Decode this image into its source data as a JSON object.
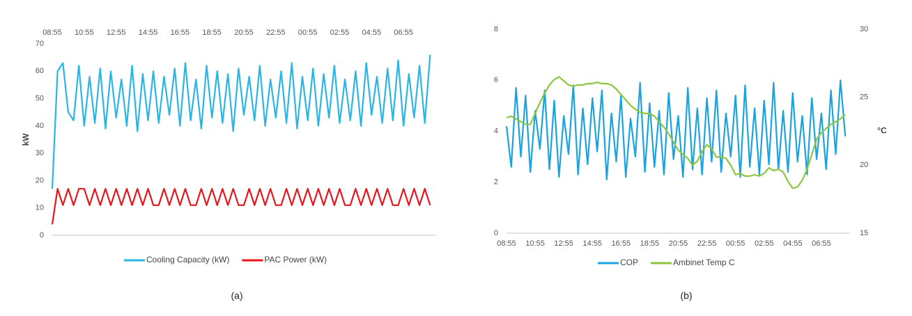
{
  "chart_data": [
    {
      "type": "line",
      "caption": "(a)",
      "y_label": "kW",
      "x_label_position": "top",
      "grid": false,
      "categories": [
        "08:55",
        null,
        null,
        null,
        null,
        null,
        "10:55",
        null,
        null,
        null,
        null,
        null,
        "12:55",
        null,
        null,
        null,
        null,
        null,
        "14:55",
        null,
        null,
        null,
        null,
        null,
        "16:55",
        null,
        null,
        null,
        null,
        null,
        "18:55",
        null,
        null,
        null,
        null,
        null,
        "20:55",
        null,
        null,
        null,
        null,
        null,
        "22:55",
        null,
        null,
        null,
        null,
        null,
        "00:55",
        null,
        null,
        null,
        null,
        null,
        "02:55",
        null,
        null,
        null,
        null,
        null,
        "04:55",
        null,
        null,
        null,
        null,
        null,
        "06:55",
        null,
        null,
        null,
        null,
        null
      ],
      "ylim": [
        0,
        70
      ],
      "yticks": [
        0,
        10,
        20,
        30,
        40,
        50,
        60,
        70
      ],
      "series": [
        {
          "name": "Cooling Capacity (kW)",
          "color": "#29b5e6",
          "values": [
            17,
            60,
            63,
            45,
            42,
            62,
            40,
            58,
            41,
            61,
            39,
            60,
            43,
            57,
            40,
            62,
            38,
            59,
            42,
            60,
            41,
            58,
            44,
            61,
            40,
            63,
            42,
            57,
            39,
            62,
            43,
            60,
            41,
            59,
            38,
            61,
            44,
            58,
            42,
            62,
            40,
            57,
            43,
            60,
            41,
            63,
            39,
            58,
            42,
            61,
            40,
            59,
            43,
            62,
            41,
            57,
            42,
            60,
            40,
            63,
            44,
            58,
            41,
            61,
            42,
            64,
            40,
            59,
            43,
            62,
            41,
            66
          ]
        },
        {
          "name": "PAC Power (kW)",
          "color": "#e8141b",
          "values": [
            4,
            17,
            11,
            17,
            11,
            17,
            17,
            11,
            17,
            11,
            17,
            11,
            17,
            11,
            17,
            11,
            17,
            11,
            17,
            11,
            11,
            17,
            11,
            17,
            11,
            17,
            11,
            11,
            17,
            11,
            17,
            11,
            17,
            11,
            17,
            11,
            11,
            17,
            11,
            17,
            11,
            17,
            11,
            11,
            17,
            11,
            17,
            11,
            17,
            11,
            17,
            11,
            17,
            11,
            17,
            11,
            11,
            17,
            11,
            17,
            11,
            17,
            11,
            17,
            11,
            11,
            17,
            11,
            17,
            11,
            17,
            11
          ]
        }
      ]
    },
    {
      "type": "line",
      "caption": "(b)",
      "y2_label": "°C",
      "x_label_position": "bottom",
      "grid": false,
      "categories": [
        "08:55",
        null,
        null,
        null,
        null,
        null,
        "10:55",
        null,
        null,
        null,
        null,
        null,
        "12:55",
        null,
        null,
        null,
        null,
        null,
        "14:55",
        null,
        null,
        null,
        null,
        null,
        "16:55",
        null,
        null,
        null,
        null,
        null,
        "18:55",
        null,
        null,
        null,
        null,
        null,
        "20:55",
        null,
        null,
        null,
        null,
        null,
        "22:55",
        null,
        null,
        null,
        null,
        null,
        "00:55",
        null,
        null,
        null,
        null,
        null,
        "02:55",
        null,
        null,
        null,
        null,
        null,
        "04:55",
        null,
        null,
        null,
        null,
        null,
        "06:55",
        null,
        null,
        null,
        null,
        null
      ],
      "ylim": [
        0,
        8
      ],
      "yticks": [
        0,
        2,
        4,
        6,
        8
      ],
      "y2lim": [
        15,
        30
      ],
      "y2ticks": [
        15,
        20,
        25,
        30
      ],
      "series": [
        {
          "name": "COP",
          "color": "#1aa3df",
          "values": [
            4.2,
            2.6,
            5.7,
            3.0,
            5.4,
            2.4,
            4.8,
            3.3,
            5.6,
            2.5,
            5.2,
            2.2,
            4.6,
            3.1,
            5.8,
            2.3,
            4.9,
            2.7,
            5.3,
            3.2,
            5.6,
            2.1,
            4.7,
            2.8,
            5.4,
            2.2,
            4.5,
            3.0,
            5.9,
            2.4,
            5.1,
            2.6,
            4.8,
            2.3,
            5.5,
            2.9,
            4.6,
            2.2,
            5.7,
            2.5,
            4.9,
            2.3,
            5.3,
            2.8,
            5.6,
            2.4,
            4.7,
            3.0,
            5.4,
            2.2,
            5.8,
            2.6,
            4.9,
            2.3,
            5.2,
            2.7,
            5.9,
            2.5,
            4.8,
            2.4,
            5.5,
            2.8,
            4.6,
            2.3,
            5.3,
            2.9,
            4.7,
            2.5,
            5.6,
            3.1,
            6.0,
            3.8
          ]
        },
        {
          "name": "Ambinet Temp C",
          "color": "#8cc63e",
          "axis": "y2",
          "values": [
            23.5,
            23.6,
            23.4,
            23.2,
            23.0,
            23.0,
            23.8,
            24.6,
            25.3,
            25.9,
            26.3,
            26.5,
            26.2,
            25.9,
            25.8,
            25.9,
            25.9,
            26.0,
            26.0,
            26.1,
            26.0,
            26.0,
            25.9,
            25.6,
            25.2,
            24.8,
            24.4,
            24.1,
            23.9,
            23.8,
            23.8,
            23.6,
            23.2,
            22.8,
            22.3,
            21.7,
            21.1,
            20.8,
            20.5,
            20.0,
            20.3,
            21.0,
            21.5,
            21.2,
            20.6,
            20.6,
            20.5,
            20.0,
            19.3,
            19.4,
            19.2,
            19.2,
            19.3,
            19.2,
            19.4,
            19.8,
            19.6,
            19.7,
            19.5,
            18.8,
            18.3,
            18.4,
            18.9,
            19.7,
            20.8,
            21.9,
            22.4,
            22.7,
            23.0,
            23.2,
            23.4,
            23.7
          ]
        }
      ]
    }
  ]
}
